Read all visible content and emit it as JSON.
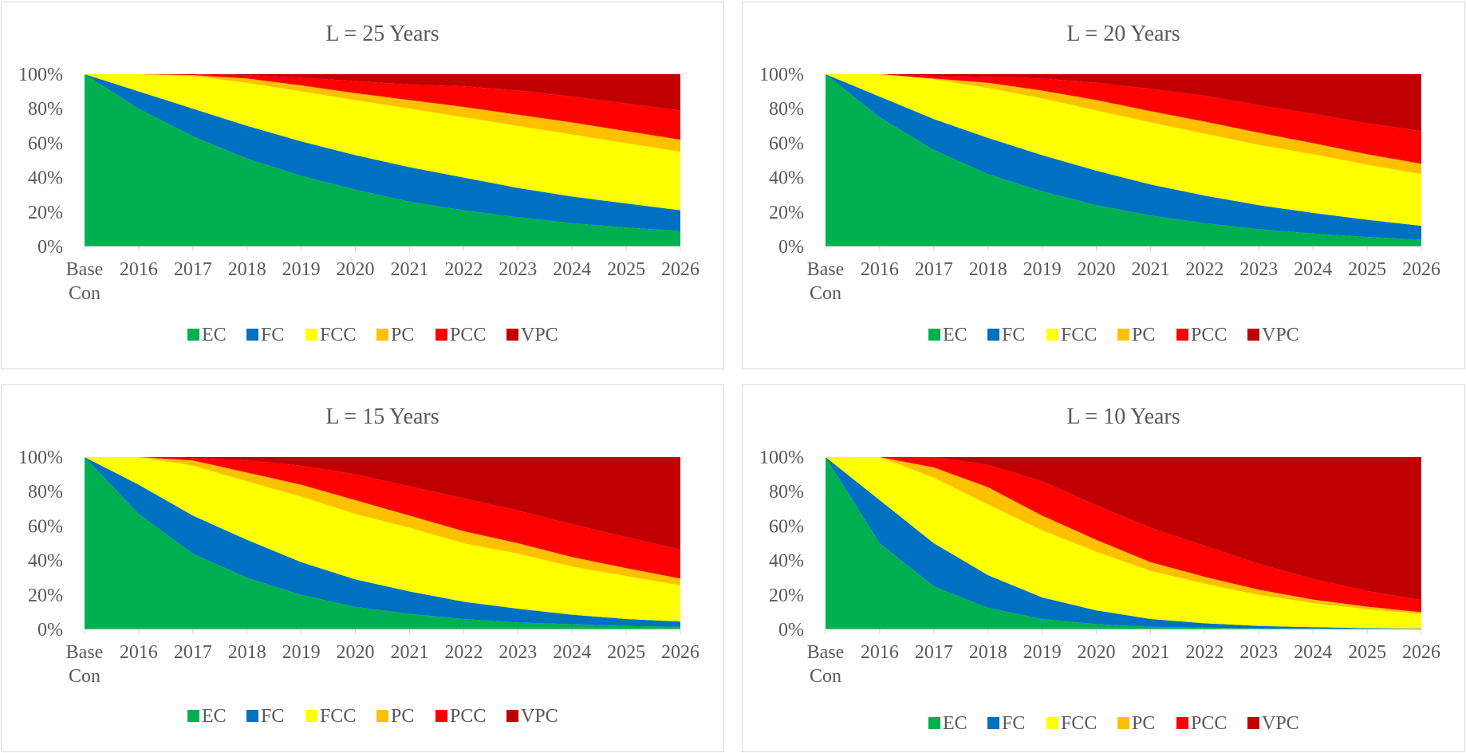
{
  "colors": {
    "EC": "#00b050",
    "FC": "#0070c0",
    "FCC": "#ffff00",
    "PC": "#ffc000",
    "PCC": "#ff0000",
    "VPC": "#c00000"
  },
  "chart_data": [
    {
      "type": "area",
      "stacked": "percent",
      "title": "L = 25 Years",
      "categories": [
        "Base Con",
        "2016",
        "2017",
        "2018",
        "2019",
        "2020",
        "2021",
        "2022",
        "2023",
        "2024",
        "2025",
        "2026"
      ],
      "y_ticks": [
        "0%",
        "20%",
        "40%",
        "60%",
        "80%",
        "100%"
      ],
      "ylim": [
        0,
        100
      ],
      "legend": "bottom",
      "series": [
        {
          "name": "EC",
          "values": [
            100,
            80,
            64,
            51,
            41,
            33,
            26,
            21,
            17,
            13.5,
            11,
            9
          ]
        },
        {
          "name": "FC",
          "values": [
            0,
            10,
            16,
            19,
            20,
            20,
            20,
            19,
            17,
            15.5,
            14,
            12
          ]
        },
        {
          "name": "FCC",
          "values": [
            0,
            10,
            19,
            25,
            29,
            32,
            34,
            35,
            36,
            36,
            35,
            34
          ]
        },
        {
          "name": "PC",
          "values": [
            0,
            0,
            0.5,
            2.5,
            3.5,
            4,
            5,
            6,
            6.5,
            7,
            7,
            7
          ]
        },
        {
          "name": "PCC",
          "values": [
            0,
            0,
            0.5,
            2,
            4.5,
            7,
            9,
            12,
            14,
            15,
            16,
            17
          ]
        },
        {
          "name": "VPC",
          "values": [
            0,
            0,
            0,
            0.5,
            2,
            4,
            6,
            7,
            9.5,
            13,
            17,
            21
          ]
        }
      ]
    },
    {
      "type": "area",
      "stacked": "percent",
      "title": "L = 20 Years",
      "categories": [
        "Base Con",
        "2016",
        "2017",
        "2018",
        "2019",
        "2020",
        "2021",
        "2022",
        "2023",
        "2024",
        "2025",
        "2026"
      ],
      "y_ticks": [
        "0%",
        "20%",
        "40%",
        "60%",
        "80%",
        "100%"
      ],
      "ylim": [
        0,
        100
      ],
      "legend": "bottom",
      "series": [
        {
          "name": "EC",
          "values": [
            100,
            75,
            56,
            42,
            32,
            24,
            18,
            13.5,
            10,
            7.5,
            5.5,
            4
          ]
        },
        {
          "name": "FC",
          "values": [
            0,
            12,
            18,
            21,
            21,
            20,
            18,
            16,
            14,
            12,
            10,
            8
          ]
        },
        {
          "name": "FCC",
          "values": [
            0,
            13,
            23,
            29,
            33,
            35,
            36,
            36,
            35,
            34,
            32,
            30
          ]
        },
        {
          "name": "PC",
          "values": [
            0,
            0,
            0.5,
            3,
            4.5,
            6,
            6.5,
            7,
            7,
            6.5,
            6,
            6
          ]
        },
        {
          "name": "PCC",
          "values": [
            0,
            0,
            1.5,
            3.5,
            7,
            10,
            13,
            15,
            16,
            17,
            18,
            19
          ]
        },
        {
          "name": "VPC",
          "values": [
            0,
            0,
            1,
            1.5,
            2.5,
            5,
            8.5,
            12.5,
            18,
            23,
            28.5,
            33
          ]
        }
      ]
    },
    {
      "type": "area",
      "stacked": "percent",
      "title": "L = 15 Years",
      "categories": [
        "Base Con",
        "2016",
        "2017",
        "2018",
        "2019",
        "2020",
        "2021",
        "2022",
        "2023",
        "2024",
        "2025",
        "2026"
      ],
      "y_ticks": [
        "0%",
        "20%",
        "40%",
        "60%",
        "80%",
        "100%"
      ],
      "ylim": [
        0,
        100
      ],
      "legend": "bottom",
      "series": [
        {
          "name": "EC",
          "values": [
            100,
            67,
            44,
            30,
            20,
            13,
            9,
            6,
            4,
            3,
            2,
            1.5
          ]
        },
        {
          "name": "FC",
          "values": [
            0,
            17,
            22,
            22,
            19,
            16,
            13,
            10,
            8,
            5.5,
            4,
            3
          ]
        },
        {
          "name": "FCC",
          "values": [
            0,
            16,
            29,
            34,
            38,
            38,
            37,
            34,
            32,
            28,
            25,
            21
          ]
        },
        {
          "name": "PC",
          "values": [
            0,
            0,
            3,
            5,
            7,
            8,
            7,
            7,
            6,
            5.5,
            4.5,
            4
          ]
        },
        {
          "name": "PCC",
          "values": [
            0,
            0,
            1.5,
            7,
            11,
            15,
            17,
            19,
            19,
            19,
            18,
            17
          ]
        },
        {
          "name": "VPC",
          "values": [
            0,
            0,
            0.5,
            2,
            5,
            10,
            17,
            24,
            31,
            39,
            46.5,
            53.5
          ]
        }
      ]
    },
    {
      "type": "area",
      "stacked": "percent",
      "title": "L = 10 Years",
      "categories": [
        "Base Con",
        "2016",
        "2017",
        "2018",
        "2019",
        "2020",
        "2021",
        "2022",
        "2023",
        "2024",
        "2025",
        "2026"
      ],
      "y_ticks": [
        "0%",
        "20%",
        "40%",
        "60%",
        "80%",
        "100%"
      ],
      "ylim": [
        0,
        100
      ],
      "legend": "bottom",
      "series": [
        {
          "name": "EC",
          "values": [
            100,
            50,
            25,
            12.5,
            6,
            3,
            1.5,
            1,
            0.5,
            0.3,
            0.1,
            0.05
          ]
        },
        {
          "name": "FC",
          "values": [
            0,
            25,
            25,
            19,
            12.5,
            8,
            4.5,
            2.5,
            1.5,
            1,
            0.6,
            0.45
          ]
        },
        {
          "name": "FCC",
          "values": [
            0,
            25,
            38,
            41,
            39,
            34,
            28,
            23,
            18,
            14,
            11,
            8.5
          ]
        },
        {
          "name": "PC",
          "values": [
            0,
            0,
            6,
            10,
            8.5,
            7,
            5,
            4,
            3,
            2,
            1.5,
            1
          ]
        },
        {
          "name": "PCC",
          "values": [
            0,
            0,
            6,
            13,
            20,
            20,
            20,
            18,
            15,
            12,
            9,
            7
          ]
        },
        {
          "name": "VPC",
          "values": [
            0,
            0,
            0,
            4.5,
            14,
            28,
            41,
            51.5,
            62,
            70.7,
            77.8,
            83
          ]
        }
      ]
    }
  ]
}
